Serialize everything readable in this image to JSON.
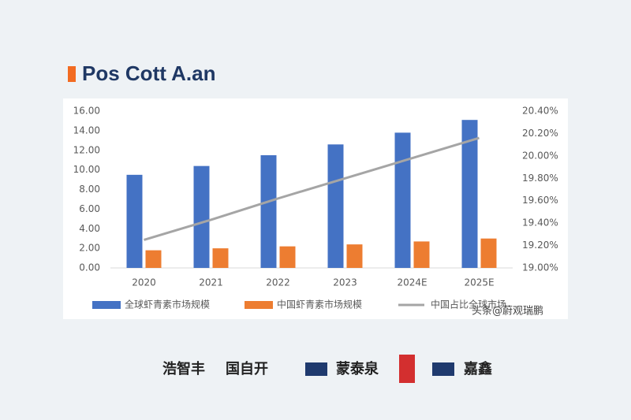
{
  "chart_data": {
    "type": "bar",
    "title": "Pos Cott A.an",
    "categories": [
      "2020",
      "2021",
      "2022",
      "2023",
      "2024E",
      "2025E"
    ],
    "series": [
      {
        "name": "全球虾青素市场规模",
        "color": "#4472c4",
        "type": "bar",
        "values": [
          9.5,
          10.4,
          11.5,
          12.6,
          13.8,
          15.1
        ]
      },
      {
        "name": "中国虾青素市场规模",
        "color": "#ed7d31",
        "type": "bar",
        "values": [
          1.8,
          2.0,
          2.2,
          2.4,
          2.7,
          3.0
        ]
      },
      {
        "name": "中国占比全球市场",
        "color": "#a5a5a5",
        "type": "line",
        "axis": "y2",
        "values": [
          19.25,
          19.43,
          19.62,
          19.8,
          19.98,
          20.16
        ]
      }
    ],
    "ylim": [
      0,
      16
    ],
    "yticks": [
      {
        "value": 0,
        "label": "0.00"
      },
      {
        "value": 2,
        "label": "2.00"
      },
      {
        "value": 4,
        "label": "4.00"
      },
      {
        "value": 6,
        "label": "6.00"
      },
      {
        "value": 8,
        "label": "8.00"
      },
      {
        "value": 10,
        "label": "10.00"
      },
      {
        "value": 12,
        "label": "12.00"
      },
      {
        "value": 14,
        "label": "14.00"
      },
      {
        "value": 16,
        "label": "16.00"
      }
    ],
    "y2lim": [
      19,
      20.4
    ],
    "y2ticks": [
      {
        "value": 19,
        "label": "19.00%"
      },
      {
        "value": 19.2,
        "label": "19.20%"
      },
      {
        "value": 19.4,
        "label": "19.40%"
      },
      {
        "value": 19.6,
        "label": "19.60%"
      },
      {
        "value": 19.8,
        "label": "19.80%"
      },
      {
        "value": 20,
        "label": "20.00%"
      },
      {
        "value": 20.2,
        "label": "20.20%"
      },
      {
        "value": 20.4,
        "label": "20.40%"
      }
    ],
    "watermark": "头条@蔚观瑞鹏",
    "logos": [
      "浩智丰",
      "国自开",
      "蒙泰泉",
      "嘉鑫"
    ]
  }
}
